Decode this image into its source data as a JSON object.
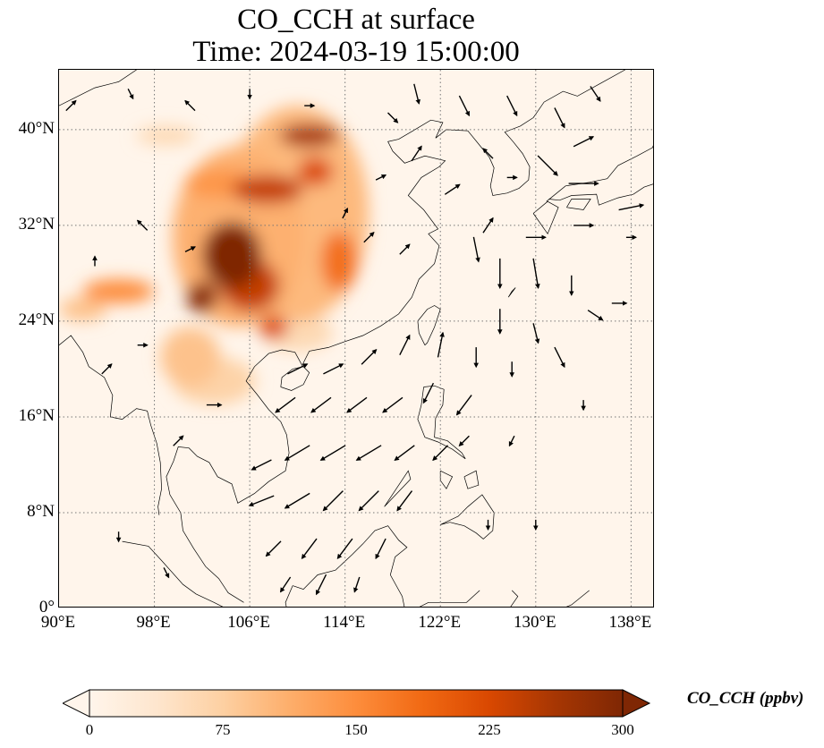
{
  "title": {
    "line1": "CO_CCH at surface",
    "line2": "Time: 2024-03-19 15:00:00"
  },
  "map": {
    "lon_range": [
      90,
      140
    ],
    "lat_range": [
      0,
      45
    ],
    "background_color": "#fff5eb",
    "gridlines": "dotted",
    "lat_ticks": [
      {
        "value": 0,
        "label": "0°"
      },
      {
        "value": 8,
        "label": "8°N"
      },
      {
        "value": 16,
        "label": "16°N"
      },
      {
        "value": 24,
        "label": "24°N"
      },
      {
        "value": 32,
        "label": "32°N"
      },
      {
        "value": 40,
        "label": "40°N"
      }
    ],
    "lon_ticks": [
      {
        "value": 90,
        "label": "90°E"
      },
      {
        "value": 98,
        "label": "98°E"
      },
      {
        "value": 106,
        "label": "106°E"
      },
      {
        "value": 114,
        "label": "114°E"
      },
      {
        "value": 122,
        "label": "122°E"
      },
      {
        "value": 130,
        "label": "130°E"
      },
      {
        "value": 138,
        "label": "138°E"
      }
    ],
    "co_concentration_blobs": [
      {
        "lon": 104.5,
        "lat": 29.5,
        "value": 300,
        "rx": 2.5,
        "ry": 2.8
      },
      {
        "lon": 102.0,
        "lat": 26.0,
        "value": 290,
        "rx": 1.3,
        "ry": 1.3
      },
      {
        "lon": 106.0,
        "lat": 27.0,
        "value": 240,
        "rx": 2.5,
        "ry": 2.2
      },
      {
        "lon": 107.5,
        "lat": 35.0,
        "value": 240,
        "rx": 3.0,
        "ry": 1.2
      },
      {
        "lon": 108.0,
        "lat": 23.5,
        "value": 220,
        "rx": 1.2,
        "ry": 1.0
      },
      {
        "lon": 111.0,
        "lat": 39.5,
        "value": 260,
        "rx": 2.5,
        "ry": 1.0
      },
      {
        "lon": 113.5,
        "lat": 29.0,
        "value": 180,
        "rx": 1.5,
        "ry": 2.5
      },
      {
        "lon": 111.5,
        "lat": 36.5,
        "value": 220,
        "rx": 1.5,
        "ry": 1.2
      },
      {
        "lon": 103.5,
        "lat": 35.5,
        "value": 140,
        "rx": 3.0,
        "ry": 1.2
      },
      {
        "lon": 95.0,
        "lat": 26.5,
        "value": 150,
        "rx": 3.0,
        "ry": 1.0
      },
      {
        "lon": 101.0,
        "lat": 21.0,
        "value": 90,
        "rx": 2.5,
        "ry": 2.5
      },
      {
        "lon": 103.0,
        "lat": 19.0,
        "value": 70,
        "rx": 3.5,
        "ry": 2.0
      },
      {
        "lon": 99.0,
        "lat": 39.5,
        "value": 60,
        "rx": 2.5,
        "ry": 0.8
      },
      {
        "lon": 110.0,
        "lat": 33.0,
        "value": 100,
        "rx": 6.0,
        "ry": 9.0
      },
      {
        "lon": 105.0,
        "lat": 31.0,
        "value": 110,
        "rx": 5.5,
        "ry": 7.5
      },
      {
        "lon": 92.0,
        "lat": 25.0,
        "value": 90,
        "rx": 2.0,
        "ry": 1.0
      },
      {
        "lon": 108.0,
        "lat": 37.5,
        "value": 80,
        "rx": 4.0,
        "ry": 2.0
      },
      {
        "lon": 110.0,
        "lat": 23.0,
        "value": 60,
        "rx": 3.0,
        "ry": 1.5
      }
    ],
    "wind_vectors": [
      {
        "lon": 91,
        "lat": 42,
        "u": 1,
        "v": 1
      },
      {
        "lon": 96,
        "lat": 43,
        "u": 0.5,
        "v": -1
      },
      {
        "lon": 101,
        "lat": 42,
        "u": -1,
        "v": 1
      },
      {
        "lon": 106,
        "lat": 43,
        "u": 0,
        "v": -1
      },
      {
        "lon": 111,
        "lat": 42,
        "u": 1,
        "v": 0
      },
      {
        "lon": 118,
        "lat": 41,
        "u": 1,
        "v": -1
      },
      {
        "lon": 120,
        "lat": 43,
        "u": 0.5,
        "v": -2
      },
      {
        "lon": 124,
        "lat": 42,
        "u": 1,
        "v": -2
      },
      {
        "lon": 128,
        "lat": 42,
        "u": 1,
        "v": -2
      },
      {
        "lon": 132,
        "lat": 41,
        "u": 1,
        "v": -2
      },
      {
        "lon": 135,
        "lat": 43,
        "u": 1,
        "v": -1.5
      },
      {
        "lon": 134,
        "lat": 39,
        "u": 2,
        "v": 1
      },
      {
        "lon": 131,
        "lat": 37,
        "u": 2,
        "v": -2
      },
      {
        "lon": 134,
        "lat": 35.5,
        "u": 3,
        "v": 0
      },
      {
        "lon": 138,
        "lat": 33.5,
        "u": 2.5,
        "v": 0.5
      },
      {
        "lon": 126,
        "lat": 38,
        "u": -1,
        "v": 1
      },
      {
        "lon": 128,
        "lat": 36,
        "u": 1,
        "v": 0
      },
      {
        "lon": 123,
        "lat": 35,
        "u": 1.5,
        "v": 1
      },
      {
        "lon": 126,
        "lat": 32,
        "u": 1,
        "v": 1.5
      },
      {
        "lon": 130,
        "lat": 31,
        "u": 2,
        "v": 0
      },
      {
        "lon": 134,
        "lat": 32,
        "u": 2,
        "v": 0
      },
      {
        "lon": 138,
        "lat": 31,
        "u": 1,
        "v": 0
      },
      {
        "lon": 125,
        "lat": 30,
        "u": 0.5,
        "v": -2.5
      },
      {
        "lon": 127,
        "lat": 28,
        "u": 0,
        "v": -3
      },
      {
        "lon": 130,
        "lat": 28,
        "u": 0.5,
        "v": -3
      },
      {
        "lon": 133,
        "lat": 27,
        "u": 0,
        "v": -2
      },
      {
        "lon": 135,
        "lat": 24.5,
        "u": 1.5,
        "v": -1
      },
      {
        "lon": 137,
        "lat": 25.5,
        "u": 1.5,
        "v": 0
      },
      {
        "lon": 127,
        "lat": 24,
        "u": 0,
        "v": -2.5
      },
      {
        "lon": 130,
        "lat": 23,
        "u": 0.5,
        "v": -2
      },
      {
        "lon": 132,
        "lat": 21,
        "u": 1,
        "v": -2
      },
      {
        "lon": 125,
        "lat": 21,
        "u": 0,
        "v": -2
      },
      {
        "lon": 128,
        "lat": 20,
        "u": 0,
        "v": -1.5
      },
      {
        "lon": 122,
        "lat": 22,
        "u": 0.5,
        "v": 2.5
      },
      {
        "lon": 119,
        "lat": 22,
        "u": 1,
        "v": 2
      },
      {
        "lon": 116,
        "lat": 21,
        "u": 1.5,
        "v": 1.5
      },
      {
        "lon": 113,
        "lat": 20,
        "u": 2,
        "v": 1
      },
      {
        "lon": 110,
        "lat": 20,
        "u": 2,
        "v": 1
      },
      {
        "lon": 121,
        "lat": 18,
        "u": -1,
        "v": -2
      },
      {
        "lon": 118,
        "lat": 17,
        "u": -2,
        "v": -1.5
      },
      {
        "lon": 115,
        "lat": 17,
        "u": -2,
        "v": -1.5
      },
      {
        "lon": 112,
        "lat": 17,
        "u": -2,
        "v": -1.5
      },
      {
        "lon": 109,
        "lat": 17,
        "u": -2,
        "v": -1.5
      },
      {
        "lon": 124,
        "lat": 17,
        "u": -1.5,
        "v": -2
      },
      {
        "lon": 119,
        "lat": 13,
        "u": -2,
        "v": -1.5
      },
      {
        "lon": 116,
        "lat": 13,
        "u": -2.5,
        "v": -1.5
      },
      {
        "lon": 113,
        "lat": 13,
        "u": -2.5,
        "v": -1.5
      },
      {
        "lon": 110,
        "lat": 13,
        "u": -2.5,
        "v": -1.5
      },
      {
        "lon": 107,
        "lat": 12,
        "u": -2,
        "v": -1
      },
      {
        "lon": 122,
        "lat": 13,
        "u": -1.5,
        "v": -1.5
      },
      {
        "lon": 124,
        "lat": 14,
        "u": -1,
        "v": -1
      },
      {
        "lon": 128,
        "lat": 14,
        "u": -0.5,
        "v": -1
      },
      {
        "lon": 134,
        "lat": 17,
        "u": 0,
        "v": -1
      },
      {
        "lon": 116,
        "lat": 9,
        "u": -2,
        "v": -2
      },
      {
        "lon": 113,
        "lat": 9,
        "u": -2,
        "v": -2
      },
      {
        "lon": 110,
        "lat": 9,
        "u": -2.5,
        "v": -1.5
      },
      {
        "lon": 107,
        "lat": 9,
        "u": -2.5,
        "v": -1
      },
      {
        "lon": 119,
        "lat": 9,
        "u": -1.5,
        "v": -2
      },
      {
        "lon": 114,
        "lat": 5,
        "u": -1.5,
        "v": -2
      },
      {
        "lon": 111,
        "lat": 5,
        "u": -1.5,
        "v": -2
      },
      {
        "lon": 108,
        "lat": 5,
        "u": -1.5,
        "v": -1.5
      },
      {
        "lon": 117,
        "lat": 5,
        "u": -1,
        "v": -2
      },
      {
        "lon": 112,
        "lat": 2,
        "u": -1,
        "v": -2
      },
      {
        "lon": 109,
        "lat": 2,
        "u": -1,
        "v": -1.5
      },
      {
        "lon": 115,
        "lat": 2,
        "u": -0.5,
        "v": -1.5
      },
      {
        "lon": 126,
        "lat": 7,
        "u": 0,
        "v": -1
      },
      {
        "lon": 130,
        "lat": 7,
        "u": 0,
        "v": -1
      },
      {
        "lon": 99,
        "lat": 3,
        "u": 0.5,
        "v": -1
      },
      {
        "lon": 95,
        "lat": 6,
        "u": 0,
        "v": -1
      },
      {
        "lon": 103,
        "lat": 17,
        "u": 1.5,
        "v": 0
      },
      {
        "lon": 100,
        "lat": 14,
        "u": 1,
        "v": 1
      },
      {
        "lon": 94,
        "lat": 20,
        "u": 1,
        "v": 1
      },
      {
        "lon": 97,
        "lat": 22,
        "u": 1,
        "v": 0
      },
      {
        "lon": 93,
        "lat": 29,
        "u": 0,
        "v": 1
      },
      {
        "lon": 97,
        "lat": 32,
        "u": -1,
        "v": 1
      },
      {
        "lon": 101,
        "lat": 30,
        "u": 1,
        "v": 0.5
      },
      {
        "lon": 116,
        "lat": 31,
        "u": 1,
        "v": 1
      },
      {
        "lon": 119,
        "lat": 30,
        "u": 1,
        "v": 1
      },
      {
        "lon": 117,
        "lat": 36,
        "u": 1,
        "v": 0.5
      },
      {
        "lon": 120,
        "lat": 38,
        "u": 1,
        "v": 1.5
      },
      {
        "lon": 114,
        "lat": 33,
        "u": 0.5,
        "v": 1
      }
    ]
  },
  "colorbar": {
    "label": "CO_CCH (ppbv)",
    "min": 0,
    "max": 300,
    "extend": "both",
    "ticks": [
      {
        "value": 0,
        "label": "0"
      },
      {
        "value": 75,
        "label": "75"
      },
      {
        "value": 150,
        "label": "150"
      },
      {
        "value": 225,
        "label": "225"
      },
      {
        "value": 300,
        "label": "300"
      }
    ],
    "colors": [
      "#fff5eb",
      "#fee6ce",
      "#fdd0a2",
      "#fdae6b",
      "#fd8d3c",
      "#f16913",
      "#d94801",
      "#a63603",
      "#7f2704"
    ]
  }
}
